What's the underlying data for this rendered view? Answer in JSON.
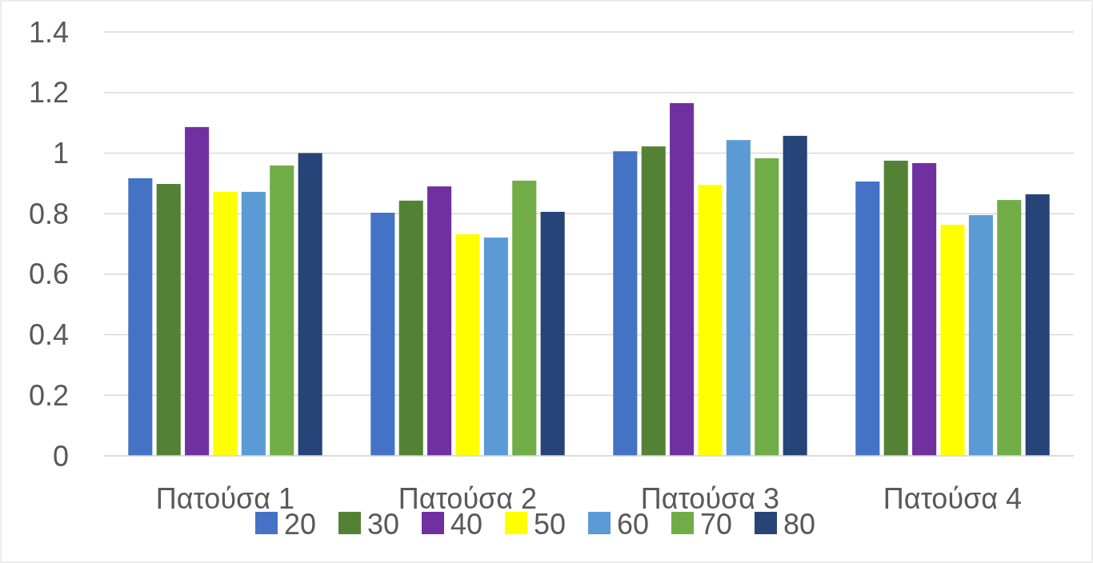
{
  "chart_data": {
    "type": "bar",
    "categories": [
      "Πατούσα 1",
      "Πατούσα 2",
      "Πατούσα 3",
      "Πατούσα 4"
    ],
    "series": [
      {
        "name": "20",
        "color": "#4472c4",
        "values": [
          0.917,
          0.803,
          1.006,
          0.906
        ]
      },
      {
        "name": "30",
        "color": "#548235",
        "values": [
          0.898,
          0.843,
          1.022,
          0.975
        ]
      },
      {
        "name": "40",
        "color": "#7030a0",
        "values": [
          1.086,
          0.89,
          1.165,
          0.967
        ]
      },
      {
        "name": "50",
        "color": "#ffff00",
        "values": [
          0.872,
          0.732,
          0.895,
          0.763
        ]
      },
      {
        "name": "60",
        "color": "#5b9bd5",
        "values": [
          0.872,
          0.721,
          1.043,
          0.795
        ]
      },
      {
        "name": "70",
        "color": "#70ad47",
        "values": [
          0.959,
          0.909,
          0.983,
          0.845
        ]
      },
      {
        "name": "80",
        "color": "#264478",
        "values": [
          1.0,
          0.806,
          1.057,
          0.864
        ]
      }
    ],
    "ylim": [
      0,
      1.4
    ],
    "yticks": [
      0,
      0.2,
      0.4,
      0.6,
      0.8,
      1,
      1.2,
      1.4
    ],
    "grid": "y",
    "legend": "bottom"
  }
}
